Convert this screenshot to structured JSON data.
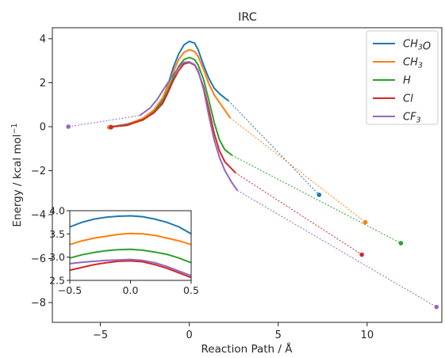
{
  "chart_data": {
    "type": "line",
    "title": "IRC",
    "xlabel": "Reaction Path / Å",
    "ylabel_parts": [
      "Energy / kcal mol",
      "−1"
    ],
    "xlim": [
      -7.7,
      14.2
    ],
    "ylim": [
      -8.9,
      4.5
    ],
    "xticks": [
      -5,
      0,
      5,
      10
    ],
    "yticks": [
      -8,
      -6,
      -4,
      -2,
      0,
      2,
      4
    ],
    "grid": false,
    "legend_position": "top-right",
    "series": [
      {
        "legend_parts": [
          [
            "CH",
            false
          ],
          [
            "3",
            true
          ],
          [
            "O",
            false
          ]
        ],
        "color": "#1f77b4",
        "curve": [
          [
            -4.3,
            0.0
          ],
          [
            -3.5,
            0.12
          ],
          [
            -2.6,
            0.35
          ],
          [
            -2.0,
            0.7
          ],
          [
            -1.5,
            1.25
          ],
          [
            -1.2,
            1.9
          ],
          [
            -0.9,
            2.7
          ],
          [
            -0.6,
            3.3
          ],
          [
            -0.3,
            3.72
          ],
          [
            0.0,
            3.88
          ],
          [
            0.3,
            3.8
          ],
          [
            0.5,
            3.5
          ],
          [
            0.8,
            2.8
          ],
          [
            1.1,
            2.2
          ],
          [
            1.4,
            1.75
          ],
          [
            1.7,
            1.5
          ],
          [
            2.0,
            1.3
          ],
          [
            2.2,
            1.18
          ]
        ],
        "endpoint_line": [
          [
            -4.3,
            0.0
          ],
          [
            -4.4,
            -0.02
          ]
        ],
        "endpoint_right": [
          [
            2.2,
            1.18
          ],
          [
            7.3,
            -3.1
          ]
        ]
      },
      {
        "legend_parts": [
          [
            "CH",
            false
          ],
          [
            "3",
            true
          ]
        ],
        "color": "#ff7f0e",
        "curve": [
          [
            -4.3,
            0.0
          ],
          [
            -3.5,
            0.1
          ],
          [
            -2.6,
            0.38
          ],
          [
            -2.0,
            0.75
          ],
          [
            -1.5,
            1.3
          ],
          [
            -1.2,
            1.85
          ],
          [
            -0.9,
            2.5
          ],
          [
            -0.6,
            3.05
          ],
          [
            -0.3,
            3.38
          ],
          [
            0.0,
            3.5
          ],
          [
            0.3,
            3.42
          ],
          [
            0.5,
            3.2
          ],
          [
            0.8,
            2.6
          ],
          [
            1.1,
            1.95
          ],
          [
            1.4,
            1.45
          ],
          [
            1.7,
            1.1
          ],
          [
            2.0,
            0.75
          ],
          [
            2.3,
            0.4
          ]
        ],
        "endpoint_line": [
          [
            -4.3,
            0.0
          ],
          [
            -4.5,
            -0.03
          ]
        ],
        "endpoint_right": [
          [
            2.3,
            0.4
          ],
          [
            9.9,
            -4.35
          ]
        ]
      },
      {
        "legend_parts": [
          [
            "H",
            false
          ]
        ],
        "color": "#2ca02c",
        "curve": [
          [
            -4.3,
            0.0
          ],
          [
            -3.5,
            0.08
          ],
          [
            -2.6,
            0.3
          ],
          [
            -2.0,
            0.65
          ],
          [
            -1.5,
            1.15
          ],
          [
            -1.2,
            1.65
          ],
          [
            -0.9,
            2.25
          ],
          [
            -0.6,
            2.75
          ],
          [
            -0.3,
            3.05
          ],
          [
            0.0,
            3.15
          ],
          [
            0.3,
            3.05
          ],
          [
            0.5,
            2.8
          ],
          [
            0.8,
            2.15
          ],
          [
            1.1,
            1.2
          ],
          [
            1.4,
            0.2
          ],
          [
            1.7,
            -0.6
          ],
          [
            2.0,
            -1.05
          ],
          [
            2.4,
            -1.3
          ]
        ],
        "endpoint_line": [
          [
            -4.3,
            0.0
          ],
          [
            -4.4,
            -0.03
          ]
        ],
        "endpoint_right": [
          [
            2.4,
            -1.3
          ],
          [
            11.9,
            -5.3
          ]
        ]
      },
      {
        "legend_parts": [
          [
            "Cl",
            false
          ]
        ],
        "color": "#d62728",
        "curve": [
          [
            -4.3,
            0.0
          ],
          [
            -3.5,
            0.06
          ],
          [
            -2.6,
            0.32
          ],
          [
            -2.0,
            0.62
          ],
          [
            -1.5,
            1.05
          ],
          [
            -1.2,
            1.55
          ],
          [
            -0.9,
            2.1
          ],
          [
            -0.6,
            2.55
          ],
          [
            -0.3,
            2.85
          ],
          [
            0.0,
            2.92
          ],
          [
            0.3,
            2.8
          ],
          [
            0.5,
            2.5
          ],
          [
            0.8,
            1.8
          ],
          [
            1.1,
            0.8
          ],
          [
            1.4,
            -0.3
          ],
          [
            1.7,
            -1.1
          ],
          [
            2.0,
            -1.6
          ],
          [
            2.6,
            -2.1
          ]
        ],
        "endpoint_line": [
          [
            -4.3,
            0.0
          ],
          [
            -4.4,
            -0.02
          ]
        ],
        "endpoint_right": [
          [
            2.6,
            -2.1
          ],
          [
            9.7,
            -5.82
          ]
        ]
      },
      {
        "legend_parts": [
          [
            "CF",
            false
          ],
          [
            "3",
            true
          ]
        ],
        "color": "#9467bd",
        "curve": [
          [
            -2.8,
            0.5
          ],
          [
            -2.2,
            0.85
          ],
          [
            -1.8,
            1.25
          ],
          [
            -1.4,
            1.75
          ],
          [
            -1.0,
            2.25
          ],
          [
            -0.6,
            2.7
          ],
          [
            -0.3,
            2.92
          ],
          [
            0.0,
            2.95
          ],
          [
            0.3,
            2.82
          ],
          [
            0.5,
            2.55
          ],
          [
            0.8,
            1.7
          ],
          [
            1.1,
            0.5
          ],
          [
            1.4,
            -0.6
          ],
          [
            1.7,
            -1.4
          ],
          [
            2.0,
            -2.0
          ],
          [
            2.4,
            -2.55
          ],
          [
            2.7,
            -2.9
          ]
        ],
        "endpoint_left": [
          [
            -6.8,
            0.0
          ],
          [
            -2.8,
            0.5
          ]
        ],
        "endpoint_right": [
          [
            2.7,
            -2.9
          ],
          [
            13.9,
            -8.2
          ]
        ]
      }
    ],
    "inset": {
      "xlim": [
        -0.5,
        0.5
      ],
      "ylim": [
        2.5,
        4.0
      ],
      "xticks": [
        -0.5,
        0.0,
        0.5
      ],
      "xtick_labels": [
        "−0.5",
        "0.0",
        "0.5"
      ],
      "yticks": [
        2.5,
        3.0,
        3.5,
        4.0
      ],
      "ytick_labels": [
        "2.5",
        "3.0",
        "3.5",
        "4.0"
      ],
      "series": [
        {
          "color": "#1f77b4",
          "points": [
            [
              -0.5,
              3.65
            ],
            [
              -0.4,
              3.75
            ],
            [
              -0.3,
              3.82
            ],
            [
              -0.2,
              3.86
            ],
            [
              -0.1,
              3.88
            ],
            [
              0.0,
              3.89
            ],
            [
              0.1,
              3.87
            ],
            [
              0.2,
              3.82
            ],
            [
              0.3,
              3.75
            ],
            [
              0.4,
              3.65
            ],
            [
              0.5,
              3.5
            ]
          ]
        },
        {
          "color": "#ff7f0e",
          "points": [
            [
              -0.5,
              3.27
            ],
            [
              -0.4,
              3.35
            ],
            [
              -0.3,
              3.41
            ],
            [
              -0.2,
              3.45
            ],
            [
              -0.1,
              3.49
            ],
            [
              0.0,
              3.51
            ],
            [
              0.1,
              3.5
            ],
            [
              0.2,
              3.47
            ],
            [
              0.3,
              3.41
            ],
            [
              0.4,
              3.35
            ],
            [
              0.5,
              3.27
            ]
          ]
        },
        {
          "color": "#2ca02c",
          "points": [
            [
              -0.5,
              2.98
            ],
            [
              -0.4,
              3.05
            ],
            [
              -0.3,
              3.1
            ],
            [
              -0.2,
              3.14
            ],
            [
              -0.1,
              3.16
            ],
            [
              0.0,
              3.17
            ],
            [
              0.1,
              3.15
            ],
            [
              0.2,
              3.11
            ],
            [
              0.3,
              3.06
            ],
            [
              0.4,
              2.98
            ],
            [
              0.5,
              2.88
            ]
          ]
        },
        {
          "color": "#d62728",
          "points": [
            [
              -0.5,
              2.72
            ],
            [
              -0.4,
              2.78
            ],
            [
              -0.3,
              2.84
            ],
            [
              -0.2,
              2.88
            ],
            [
              -0.1,
              2.91
            ],
            [
              0.0,
              2.92
            ],
            [
              0.1,
              2.9
            ],
            [
              0.2,
              2.84
            ],
            [
              0.3,
              2.76
            ],
            [
              0.4,
              2.66
            ],
            [
              0.5,
              2.56
            ]
          ]
        },
        {
          "color": "#9467bd",
          "points": [
            [
              -0.5,
              2.86
            ],
            [
              -0.4,
              2.89
            ],
            [
              -0.3,
              2.91
            ],
            [
              -0.2,
              2.93
            ],
            [
              -0.1,
              2.94
            ],
            [
              0.0,
              2.95
            ],
            [
              0.1,
              2.93
            ],
            [
              0.2,
              2.88
            ],
            [
              0.3,
              2.8
            ],
            [
              0.4,
              2.7
            ],
            [
              0.5,
              2.6
            ]
          ]
        }
      ]
    }
  }
}
